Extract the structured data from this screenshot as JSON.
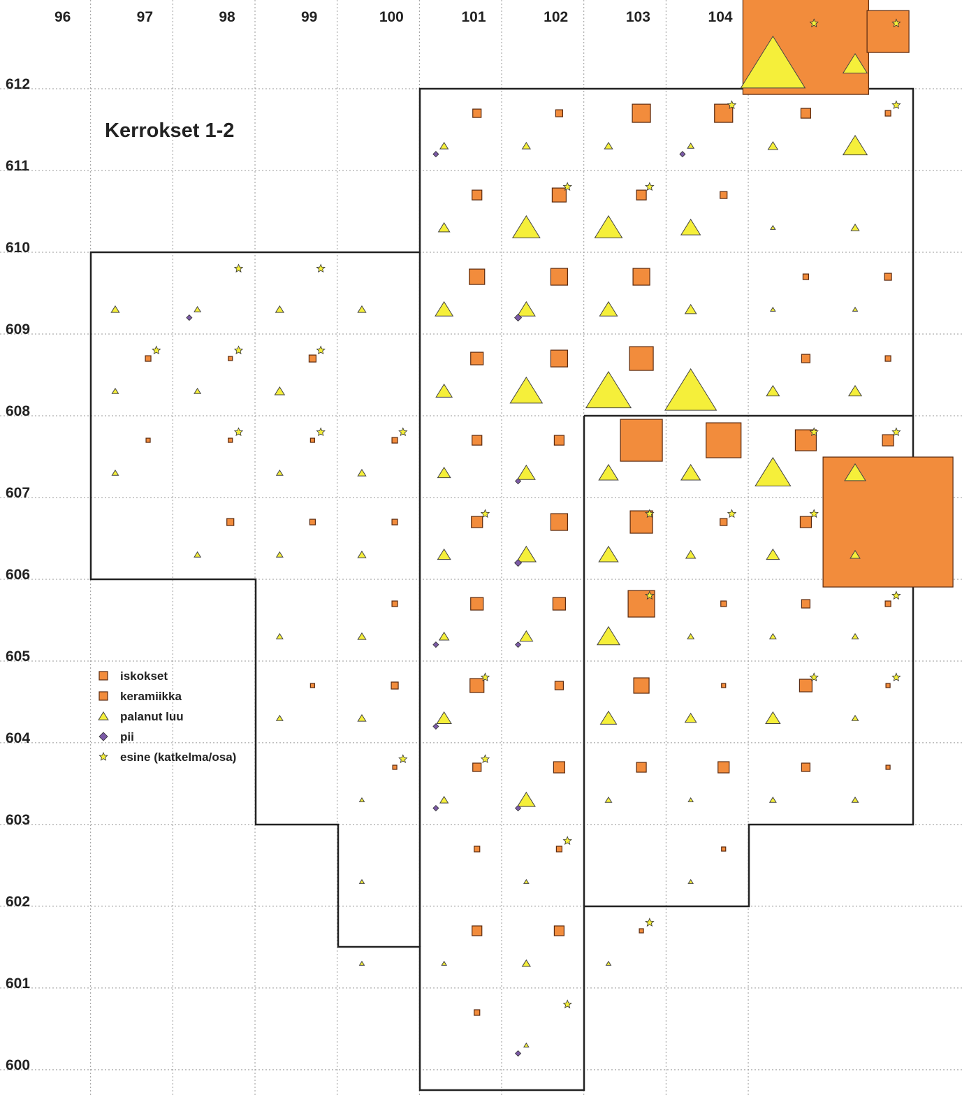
{
  "chart_data": {
    "type": "scatter",
    "title": "Kerrokset 1-2",
    "xlim": [
      95,
      106.6
    ],
    "ylim": [
      599.7,
      613
    ],
    "xticks": [
      96,
      97,
      98,
      99,
      100,
      101,
      102,
      103,
      104
    ],
    "yticks": [
      612,
      611,
      610,
      609,
      608,
      607,
      606,
      605,
      604,
      603,
      602,
      601,
      600
    ],
    "grid": true,
    "legend": "lower-left",
    "series": [
      {
        "name": "iskokset",
        "shape": "square",
        "color": "#f28c3c",
        "x": [],
        "values": [],
        "sizes": []
      },
      {
        "name": "keramiikka",
        "shape": "square",
        "color": "#f28c3c",
        "x": [
          104.5,
          105.5,
          100.5,
          101.5,
          102.5,
          103.5,
          104.5,
          105.5,
          100.5,
          101.5,
          102.5,
          103.5,
          100.5,
          101.5,
          102.5,
          104.5,
          105.5,
          96.5,
          97.5,
          98.5,
          100.5,
          101.5,
          102.5,
          104.5,
          105.5,
          96.5,
          97.5,
          98.5,
          99.5,
          100.5,
          101.5,
          102.5,
          103.5,
          104.5,
          105.5,
          97.5,
          98.5,
          99.5,
          100.5,
          101.5,
          102.5,
          103.5,
          104.5,
          105.5,
          99.5,
          100.5,
          101.5,
          102.5,
          103.5,
          104.5,
          105.5,
          98.5,
          99.5,
          100.5,
          101.5,
          102.5,
          103.5,
          104.5,
          105.5,
          99.5,
          100.5,
          101.5,
          102.5,
          103.5,
          104.5,
          105.5,
          100.5,
          101.5,
          103.5,
          100.5,
          101.5,
          102.5,
          100.5
        ],
        "values": [
          612.5,
          612.5,
          611.5,
          611.5,
          611.5,
          611.5,
          611.5,
          611.5,
          610.5,
          610.5,
          610.5,
          610.5,
          609.5,
          609.5,
          609.5,
          609.5,
          609.5,
          608.5,
          608.5,
          608.5,
          608.5,
          608.5,
          608.5,
          608.5,
          608.5,
          607.5,
          607.5,
          607.5,
          607.5,
          607.5,
          607.5,
          607.5,
          607.5,
          607.5,
          607.5,
          606.5,
          606.5,
          606.5,
          606.5,
          606.5,
          606.5,
          606.5,
          606.5,
          606.5,
          605.5,
          605.5,
          605.5,
          605.5,
          605.5,
          605.5,
          605.5,
          604.5,
          604.5,
          604.5,
          604.5,
          604.5,
          604.5,
          604.5,
          604.5,
          603.5,
          603.5,
          603.5,
          603.5,
          603.5,
          603.5,
          603.5,
          602.5,
          602.5,
          602.5,
          601.5,
          601.5,
          601.5,
          600.5
        ],
        "sizes": [
          90,
          30,
          6,
          5,
          13,
          13,
          7,
          4,
          7,
          10,
          7,
          5,
          11,
          12,
          12,
          4,
          5,
          4,
          3,
          5,
          9,
          12,
          17,
          6,
          4,
          3,
          3,
          3,
          4,
          7,
          7,
          30,
          25,
          15,
          8,
          5,
          4,
          4,
          8,
          12,
          16,
          5,
          8,
          93,
          4,
          9,
          9,
          19,
          4,
          6,
          4,
          3,
          5,
          10,
          6,
          11,
          3,
          9,
          3,
          3,
          6,
          8,
          7,
          8,
          6,
          3,
          4,
          4,
          3,
          7,
          7,
          3,
          4
        ]
      },
      {
        "name": "palanut luu",
        "shape": "triangle",
        "color": "#f5ef3a",
        "x": [
          104.5,
          105.5,
          100.5,
          101.5,
          102.5,
          103.5,
          104.5,
          105.5,
          100.5,
          101.5,
          102.5,
          103.5,
          104.5,
          105.5,
          96.5,
          97.5,
          98.5,
          99.5,
          100.5,
          101.5,
          102.5,
          103.5,
          104.5,
          105.5,
          96.5,
          97.5,
          98.5,
          100.5,
          101.5,
          102.5,
          103.5,
          104.5,
          105.5,
          96.5,
          98.5,
          99.5,
          100.5,
          101.5,
          102.5,
          103.5,
          104.5,
          105.5,
          97.5,
          98.5,
          99.5,
          100.5,
          101.5,
          102.5,
          103.5,
          104.5,
          105.5,
          98.5,
          99.5,
          100.5,
          101.5,
          102.5,
          103.5,
          104.5,
          105.5,
          98.5,
          99.5,
          100.5,
          102.5,
          103.5,
          104.5,
          105.5,
          99.5,
          100.5,
          101.5,
          102.5,
          103.5,
          104.5,
          105.5,
          99.5,
          101.5,
          103.5,
          99.5,
          100.5,
          101.5,
          102.5,
          101.5
        ],
        "values": [
          612.5,
          612.5,
          611.5,
          611.5,
          611.5,
          611.5,
          611.5,
          611.5,
          610.5,
          610.5,
          610.5,
          610.5,
          610.5,
          610.5,
          609.5,
          609.5,
          609.5,
          609.5,
          609.5,
          609.5,
          609.5,
          609.5,
          609.5,
          609.5,
          608.5,
          608.5,
          608.5,
          608.5,
          608.5,
          608.5,
          608.5,
          608.5,
          608.5,
          607.5,
          607.5,
          607.5,
          607.5,
          607.5,
          607.5,
          607.5,
          607.5,
          607.5,
          606.5,
          606.5,
          606.5,
          606.5,
          606.5,
          606.5,
          606.5,
          606.5,
          606.5,
          605.5,
          605.5,
          605.5,
          605.5,
          605.5,
          605.5,
          605.5,
          605.5,
          604.5,
          604.5,
          604.5,
          604.5,
          604.5,
          604.5,
          604.5,
          603.5,
          603.5,
          603.5,
          603.5,
          603.5,
          603.5,
          603.5,
          602.5,
          602.5,
          602.5,
          601.5,
          601.5,
          601.5,
          601.5,
          600.5
        ],
        "sizes": [
          40,
          15,
          5,
          5,
          5,
          4,
          6,
          15,
          7,
          17,
          17,
          12,
          3,
          5,
          5,
          4,
          5,
          5,
          11,
          11,
          11,
          7,
          3,
          3,
          4,
          4,
          6,
          10,
          20,
          28,
          32,
          8,
          8,
          4,
          4,
          5,
          8,
          11,
          12,
          12,
          22,
          13,
          4,
          4,
          5,
          8,
          12,
          12,
          6,
          8,
          6,
          4,
          5,
          6,
          8,
          14,
          4,
          4,
          4,
          4,
          5,
          9,
          10,
          7,
          9,
          4,
          3,
          5,
          11,
          4,
          3,
          4,
          4,
          3,
          3,
          3,
          3,
          3,
          5,
          3,
          3
        ]
      },
      {
        "name": "pii",
        "shape": "diamond",
        "color": "#7b5aa6",
        "x": [
          100.5,
          103.5,
          97.5,
          101.5,
          101.5,
          101.5,
          100.5,
          101.5,
          100.5,
          100.5,
          101.5,
          101.5
        ],
        "values": [
          611.5,
          611.5,
          609.5,
          609.5,
          607.5,
          606.5,
          605.5,
          605.5,
          604.5,
          603.5,
          603.5,
          600.5
        ],
        "sizes": [
          4,
          4,
          4,
          5,
          4,
          5,
          4,
          4,
          4,
          4,
          4,
          4
        ]
      },
      {
        "name": "esine (katkelma/osa)",
        "shape": "star",
        "color": "#f5ef3a",
        "x": [
          104.5,
          105.5,
          103.5,
          105.5,
          101.5,
          102.5,
          97.5,
          98.5,
          96.5,
          97.5,
          98.5,
          97.5,
          98.5,
          99.5,
          104.5,
          105.5,
          100.5,
          102.5,
          103.5,
          104.5,
          102.5,
          105.5,
          100.5,
          104.5,
          105.5,
          99.5,
          100.5,
          101.5,
          102.5,
          101.5
        ],
        "values": [
          612.5,
          612.5,
          611.5,
          611.5,
          610.5,
          610.5,
          609.5,
          609.5,
          608.5,
          608.5,
          608.5,
          607.5,
          607.5,
          607.5,
          607.5,
          607.5,
          606.5,
          606.5,
          606.5,
          606.5,
          605.5,
          605.5,
          604.5,
          604.5,
          604.5,
          603.5,
          603.5,
          602.5,
          601.5,
          600.5
        ],
        "sizes": [
          6,
          6,
          6,
          6,
          6,
          6,
          6,
          6,
          6,
          6,
          6,
          6,
          6,
          6,
          6,
          6,
          6,
          6,
          6,
          6,
          6,
          6,
          6,
          6,
          6,
          6,
          6,
          6,
          6,
          6
        ]
      }
    ]
  }
}
